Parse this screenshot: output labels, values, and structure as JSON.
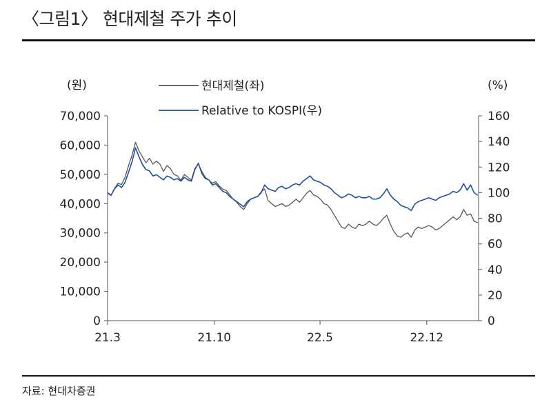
{
  "figure": {
    "title": "〈그림1〉 현대제철 주가 추이",
    "source": "자료: 현대차증권"
  },
  "chart_data": {
    "type": "line",
    "left_unit": "(원)",
    "right_unit": "(%)",
    "x_ticks": [
      "21.3",
      "21.10",
      "22.5",
      "22.12"
    ],
    "x_range": [
      "2021-03-01",
      "2023-03-15"
    ],
    "x_tick_dates": [
      "2021-03-01",
      "2021-10-01",
      "2022-05-01",
      "2022-12-01"
    ],
    "y_left": {
      "min": 0,
      "max": 70000,
      "ticks": [
        "0",
        "10,000",
        "20,000",
        "30,000",
        "40,000",
        "50,000",
        "60,000",
        "70,000"
      ]
    },
    "y_right": {
      "min": 0,
      "max": 160,
      "ticks": [
        "0",
        "20",
        "40",
        "60",
        "80",
        "100",
        "120",
        "140",
        "160"
      ]
    },
    "legend_position": "top-center",
    "grid": false,
    "series": [
      {
        "name": "현대제철(좌)",
        "axis": "left",
        "color": "#555555",
        "points": [
          [
            "2021-03-01",
            43500
          ],
          [
            "2021-03-08",
            42800
          ],
          [
            "2021-03-15",
            45200
          ],
          [
            "2021-03-22",
            47000
          ],
          [
            "2021-03-29",
            46500
          ],
          [
            "2021-04-05",
            49000
          ],
          [
            "2021-04-12",
            53000
          ],
          [
            "2021-04-19",
            56500
          ],
          [
            "2021-04-26",
            61000
          ],
          [
            "2021-05-03",
            58000
          ],
          [
            "2021-05-10",
            56000
          ],
          [
            "2021-05-17",
            54000
          ],
          [
            "2021-05-24",
            55500
          ],
          [
            "2021-05-31",
            53500
          ],
          [
            "2021-06-07",
            54500
          ],
          [
            "2021-06-14",
            53500
          ],
          [
            "2021-06-21",
            51000
          ],
          [
            "2021-06-28",
            53000
          ],
          [
            "2021-07-05",
            52000
          ],
          [
            "2021-07-12",
            50000
          ],
          [
            "2021-07-19",
            49500
          ],
          [
            "2021-07-26",
            48000
          ],
          [
            "2021-08-02",
            50000
          ],
          [
            "2021-08-09",
            49000
          ],
          [
            "2021-08-16",
            48000
          ],
          [
            "2021-08-23",
            52000
          ],
          [
            "2021-08-30",
            53500
          ],
          [
            "2021-09-06",
            51000
          ],
          [
            "2021-09-13",
            49000
          ],
          [
            "2021-09-20",
            48000
          ],
          [
            "2021-09-27",
            47000
          ],
          [
            "2021-10-04",
            47500
          ],
          [
            "2021-10-11",
            46000
          ],
          [
            "2021-10-18",
            45000
          ],
          [
            "2021-10-25",
            44500
          ],
          [
            "2021-11-01",
            43000
          ],
          [
            "2021-11-08",
            41500
          ],
          [
            "2021-11-15",
            40500
          ],
          [
            "2021-11-22",
            39000
          ],
          [
            "2021-11-29",
            38000
          ],
          [
            "2021-12-06",
            40000
          ],
          [
            "2021-12-13",
            41500
          ],
          [
            "2021-12-20",
            42000
          ],
          [
            "2021-12-27",
            42500
          ],
          [
            "2022-01-03",
            44000
          ],
          [
            "2022-01-10",
            45000
          ],
          [
            "2022-01-17",
            41000
          ],
          [
            "2022-01-24",
            40000
          ],
          [
            "2022-01-31",
            39000
          ],
          [
            "2022-02-07",
            39500
          ],
          [
            "2022-02-14",
            40000
          ],
          [
            "2022-02-21",
            39000
          ],
          [
            "2022-02-28",
            39500
          ],
          [
            "2022-03-07",
            40500
          ],
          [
            "2022-03-14",
            41500
          ],
          [
            "2022-03-21",
            40500
          ],
          [
            "2022-03-28",
            42000
          ],
          [
            "2022-04-04",
            43500
          ],
          [
            "2022-04-11",
            44500
          ],
          [
            "2022-04-18",
            43000
          ],
          [
            "2022-04-25",
            42500
          ],
          [
            "2022-05-02",
            41500
          ],
          [
            "2022-05-09",
            40000
          ],
          [
            "2022-05-16",
            39500
          ],
          [
            "2022-05-23",
            38000
          ],
          [
            "2022-05-30",
            36000
          ],
          [
            "2022-06-06",
            34000
          ],
          [
            "2022-06-13",
            32000
          ],
          [
            "2022-06-20",
            31500
          ],
          [
            "2022-06-27",
            33000
          ],
          [
            "2022-07-04",
            32000
          ],
          [
            "2022-07-11",
            31500
          ],
          [
            "2022-07-18",
            33000
          ],
          [
            "2022-07-25",
            32500
          ],
          [
            "2022-08-01",
            33000
          ],
          [
            "2022-08-08",
            34000
          ],
          [
            "2022-08-15",
            33000
          ],
          [
            "2022-08-22",
            32500
          ],
          [
            "2022-08-29",
            33500
          ],
          [
            "2022-09-05",
            35000
          ],
          [
            "2022-09-12",
            36000
          ],
          [
            "2022-09-19",
            33000
          ],
          [
            "2022-09-26",
            30500
          ],
          [
            "2022-10-03",
            29000
          ],
          [
            "2022-10-10",
            28500
          ],
          [
            "2022-10-17",
            29500
          ],
          [
            "2022-10-24",
            30000
          ],
          [
            "2022-10-31",
            28500
          ],
          [
            "2022-11-07",
            31000
          ],
          [
            "2022-11-14",
            32000
          ],
          [
            "2022-11-21",
            31500
          ],
          [
            "2022-11-28",
            32000
          ],
          [
            "2022-12-05",
            32500
          ],
          [
            "2022-12-12",
            32000
          ],
          [
            "2022-12-19",
            31000
          ],
          [
            "2022-12-26",
            31500
          ],
          [
            "2023-01-02",
            32500
          ],
          [
            "2023-01-09",
            33500
          ],
          [
            "2023-01-16",
            34500
          ],
          [
            "2023-01-23",
            35500
          ],
          [
            "2023-01-30",
            34500
          ],
          [
            "2023-02-06",
            35500
          ],
          [
            "2023-02-13",
            38000
          ],
          [
            "2023-02-20",
            36000
          ],
          [
            "2023-02-27",
            36500
          ],
          [
            "2023-03-06",
            34000
          ],
          [
            "2023-03-13",
            33500
          ]
        ]
      },
      {
        "name": "Relative to KOSPI(우)",
        "axis": "right",
        "color": "#1f4e9c",
        "points": [
          [
            "2021-03-01",
            100
          ],
          [
            "2021-03-08",
            98
          ],
          [
            "2021-03-15",
            103
          ],
          [
            "2021-03-22",
            106
          ],
          [
            "2021-03-29",
            104
          ],
          [
            "2021-04-05",
            108
          ],
          [
            "2021-04-12",
            116
          ],
          [
            "2021-04-19",
            124
          ],
          [
            "2021-04-26",
            135
          ],
          [
            "2021-05-03",
            128
          ],
          [
            "2021-05-10",
            122
          ],
          [
            "2021-05-17",
            118
          ],
          [
            "2021-05-24",
            117
          ],
          [
            "2021-05-31",
            113
          ],
          [
            "2021-06-07",
            114
          ],
          [
            "2021-06-14",
            112
          ],
          [
            "2021-06-21",
            110
          ],
          [
            "2021-06-28",
            113
          ],
          [
            "2021-07-05",
            112
          ],
          [
            "2021-07-12",
            110
          ],
          [
            "2021-07-19",
            111
          ],
          [
            "2021-07-26",
            109
          ],
          [
            "2021-08-02",
            112
          ],
          [
            "2021-08-09",
            110
          ],
          [
            "2021-08-16",
            109
          ],
          [
            "2021-08-23",
            118
          ],
          [
            "2021-08-30",
            123
          ],
          [
            "2021-09-06",
            115
          ],
          [
            "2021-09-13",
            111
          ],
          [
            "2021-09-20",
            110
          ],
          [
            "2021-09-27",
            106
          ],
          [
            "2021-10-04",
            107
          ],
          [
            "2021-10-11",
            104
          ],
          [
            "2021-10-18",
            101
          ],
          [
            "2021-10-25",
            100
          ],
          [
            "2021-11-01",
            97
          ],
          [
            "2021-11-08",
            95
          ],
          [
            "2021-11-15",
            93
          ],
          [
            "2021-11-22",
            91
          ],
          [
            "2021-11-29",
            89
          ],
          [
            "2021-12-06",
            93
          ],
          [
            "2021-12-13",
            95
          ],
          [
            "2021-12-20",
            96
          ],
          [
            "2021-12-27",
            97
          ],
          [
            "2022-01-03",
            100
          ],
          [
            "2022-01-10",
            106
          ],
          [
            "2022-01-17",
            103
          ],
          [
            "2022-01-24",
            102
          ],
          [
            "2022-01-31",
            101
          ],
          [
            "2022-02-07",
            104
          ],
          [
            "2022-02-14",
            105
          ],
          [
            "2022-02-21",
            103
          ],
          [
            "2022-02-28",
            104
          ],
          [
            "2022-03-07",
            106
          ],
          [
            "2022-03-14",
            107
          ],
          [
            "2022-03-21",
            106
          ],
          [
            "2022-03-28",
            109
          ],
          [
            "2022-04-04",
            111
          ],
          [
            "2022-04-11",
            113
          ],
          [
            "2022-04-18",
            110
          ],
          [
            "2022-04-25",
            109
          ],
          [
            "2022-05-02",
            108
          ],
          [
            "2022-05-09",
            106
          ],
          [
            "2022-05-16",
            105
          ],
          [
            "2022-05-23",
            103
          ],
          [
            "2022-05-30",
            100
          ],
          [
            "2022-06-06",
            98
          ],
          [
            "2022-06-13",
            96
          ],
          [
            "2022-06-20",
            97
          ],
          [
            "2022-06-27",
            99
          ],
          [
            "2022-07-04",
            98
          ],
          [
            "2022-07-11",
            96
          ],
          [
            "2022-07-18",
            97
          ],
          [
            "2022-07-25",
            96
          ],
          [
            "2022-08-01",
            96
          ],
          [
            "2022-08-08",
            97
          ],
          [
            "2022-08-15",
            95
          ],
          [
            "2022-08-22",
            95
          ],
          [
            "2022-08-29",
            96
          ],
          [
            "2022-09-05",
            99
          ],
          [
            "2022-09-12",
            103
          ],
          [
            "2022-09-19",
            98
          ],
          [
            "2022-09-26",
            95
          ],
          [
            "2022-10-03",
            93
          ],
          [
            "2022-10-10",
            90
          ],
          [
            "2022-10-17",
            89
          ],
          [
            "2022-10-24",
            88
          ],
          [
            "2022-10-31",
            86
          ],
          [
            "2022-11-07",
            91
          ],
          [
            "2022-11-14",
            93
          ],
          [
            "2022-11-21",
            94
          ],
          [
            "2022-11-28",
            95
          ],
          [
            "2022-12-05",
            96
          ],
          [
            "2022-12-12",
            95
          ],
          [
            "2022-12-19",
            94
          ],
          [
            "2022-12-26",
            96
          ],
          [
            "2023-01-02",
            97
          ],
          [
            "2023-01-09",
            98
          ],
          [
            "2023-01-16",
            99
          ],
          [
            "2023-01-23",
            101
          ],
          [
            "2023-01-30",
            100
          ],
          [
            "2023-02-06",
            102
          ],
          [
            "2023-02-13",
            107
          ],
          [
            "2023-02-20",
            102
          ],
          [
            "2023-02-27",
            106
          ],
          [
            "2023-03-06",
            100
          ],
          [
            "2023-03-13",
            98
          ]
        ]
      }
    ]
  }
}
